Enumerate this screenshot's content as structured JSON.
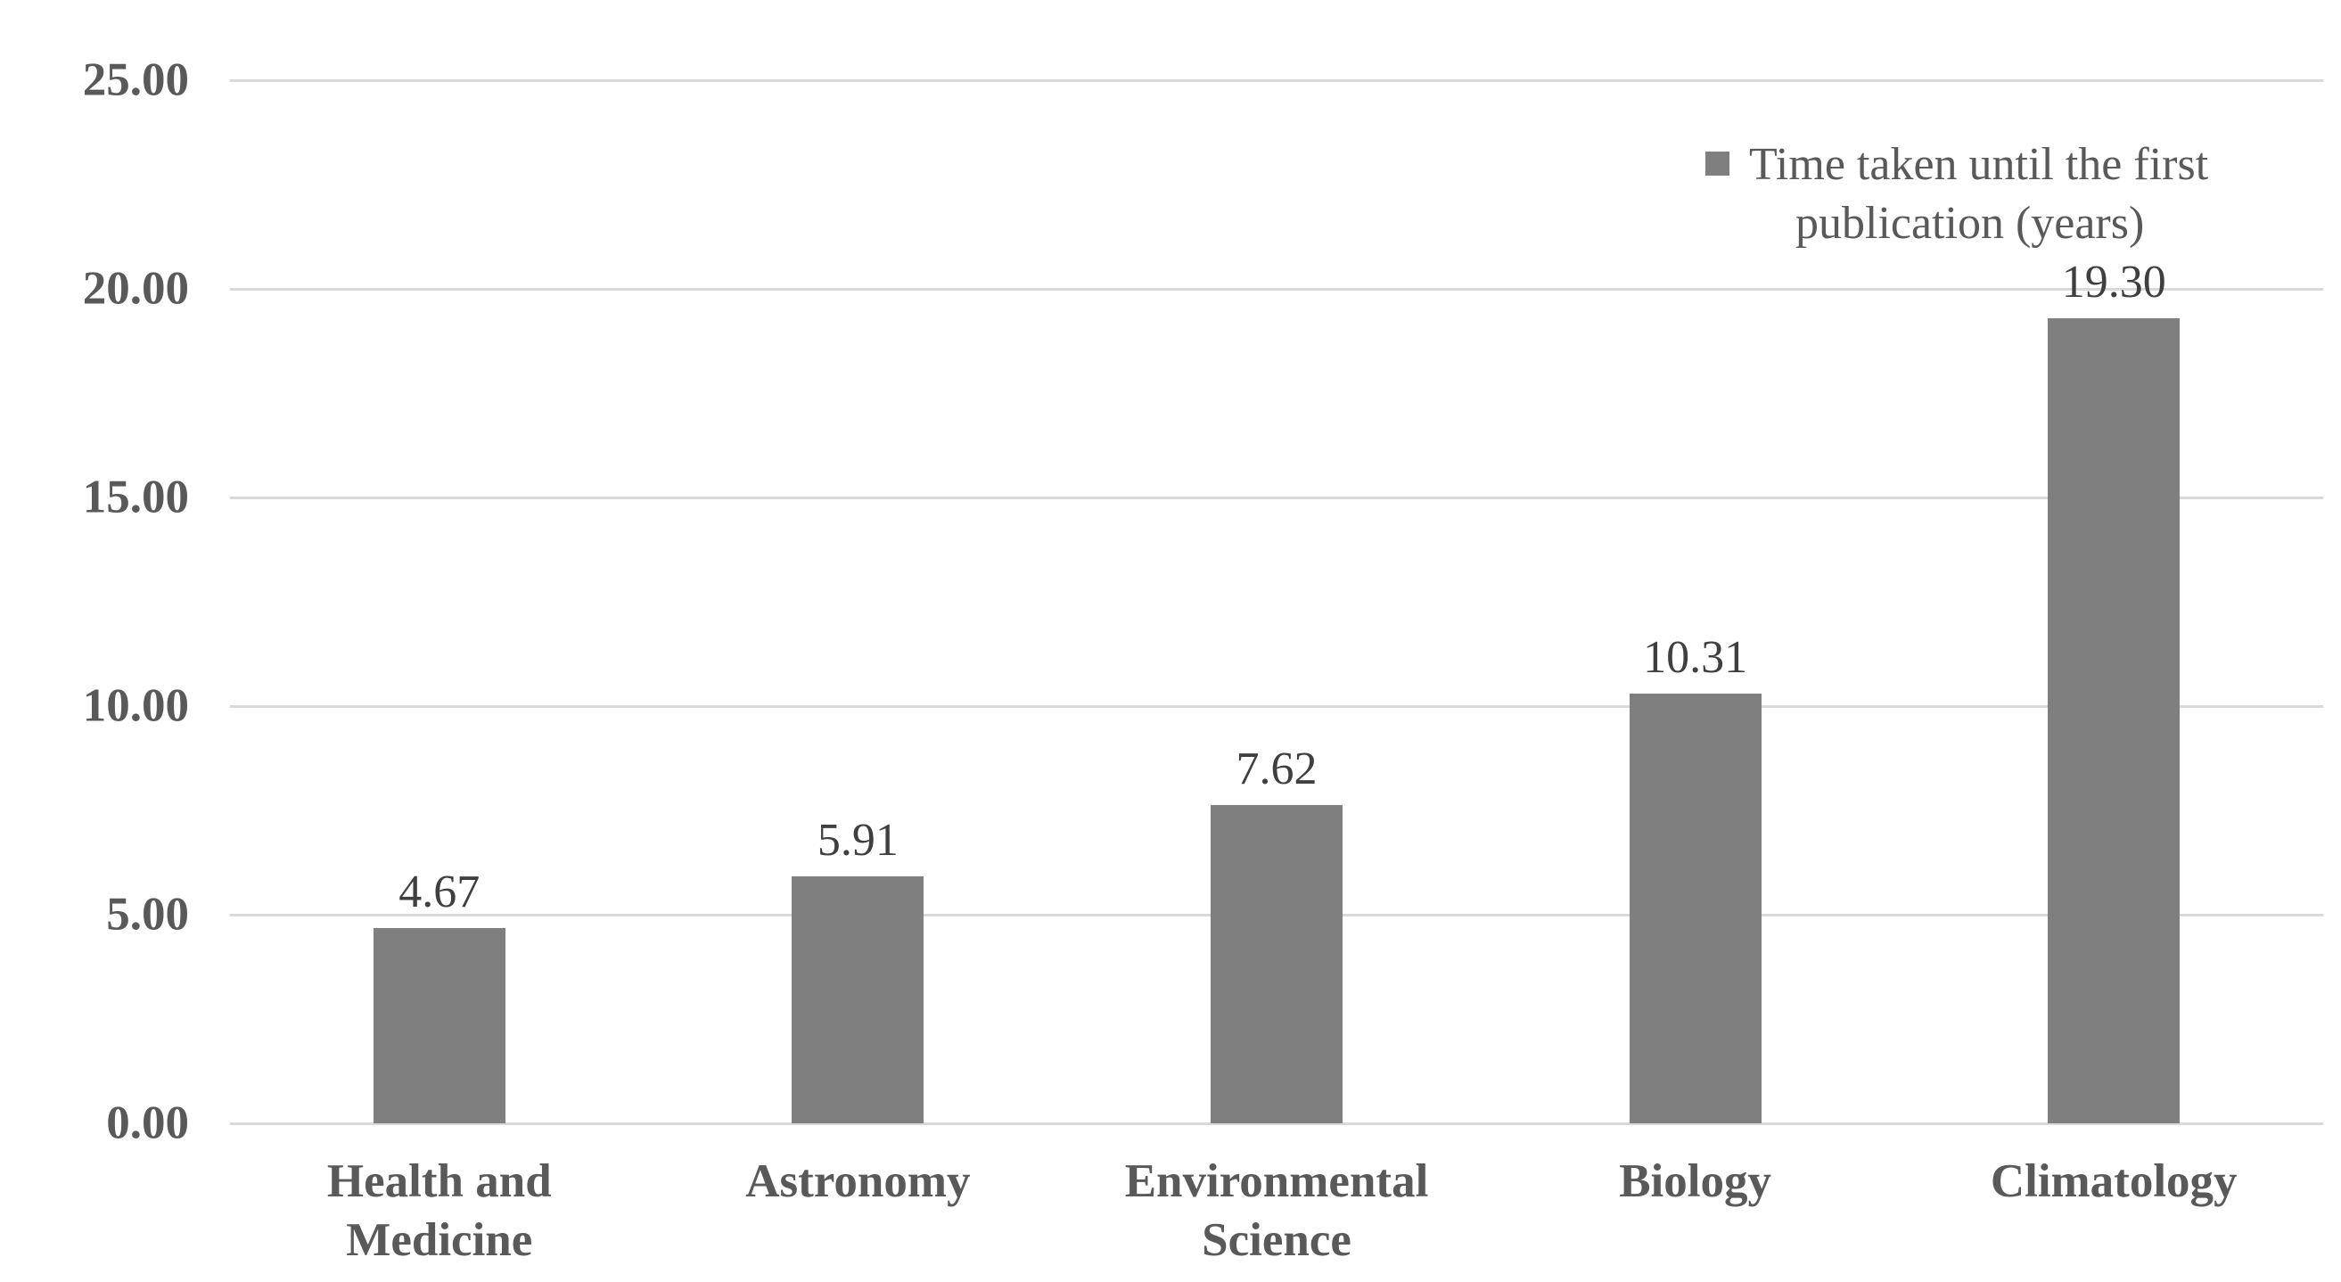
{
  "chart_data": {
    "type": "bar",
    "title": "",
    "categories": [
      "Health and Medicine",
      "Astronomy",
      "Environmental Science",
      "Biology",
      "Climatology"
    ],
    "series": [
      {
        "name": "Time taken until the first publication (years)",
        "values": [
          4.67,
          5.91,
          7.62,
          10.31,
          19.3
        ]
      }
    ],
    "value_labels": [
      "4.67",
      "5.91",
      "7.62",
      "10.31",
      "19.30"
    ],
    "xlabel": "",
    "ylabel": "",
    "y_ticks": [
      "25.00",
      "20.00",
      "15.00",
      "10.00",
      "5.00",
      "0.00"
    ],
    "ylim": [
      0,
      25
    ],
    "y_tick_step": 5,
    "grid": true,
    "legend": {
      "position": "top-right",
      "marker": "square",
      "lines": [
        "Time taken until the first",
        "publication (years)"
      ]
    },
    "colors": {
      "bar": "#7f7f7f",
      "gridline": "#d9d9d9",
      "axis_text": "#595959",
      "data_label_text": "#3f3f3f",
      "legend_text": "#595959",
      "legend_marker": "#7f7f7f",
      "background": "#ffffff"
    }
  }
}
